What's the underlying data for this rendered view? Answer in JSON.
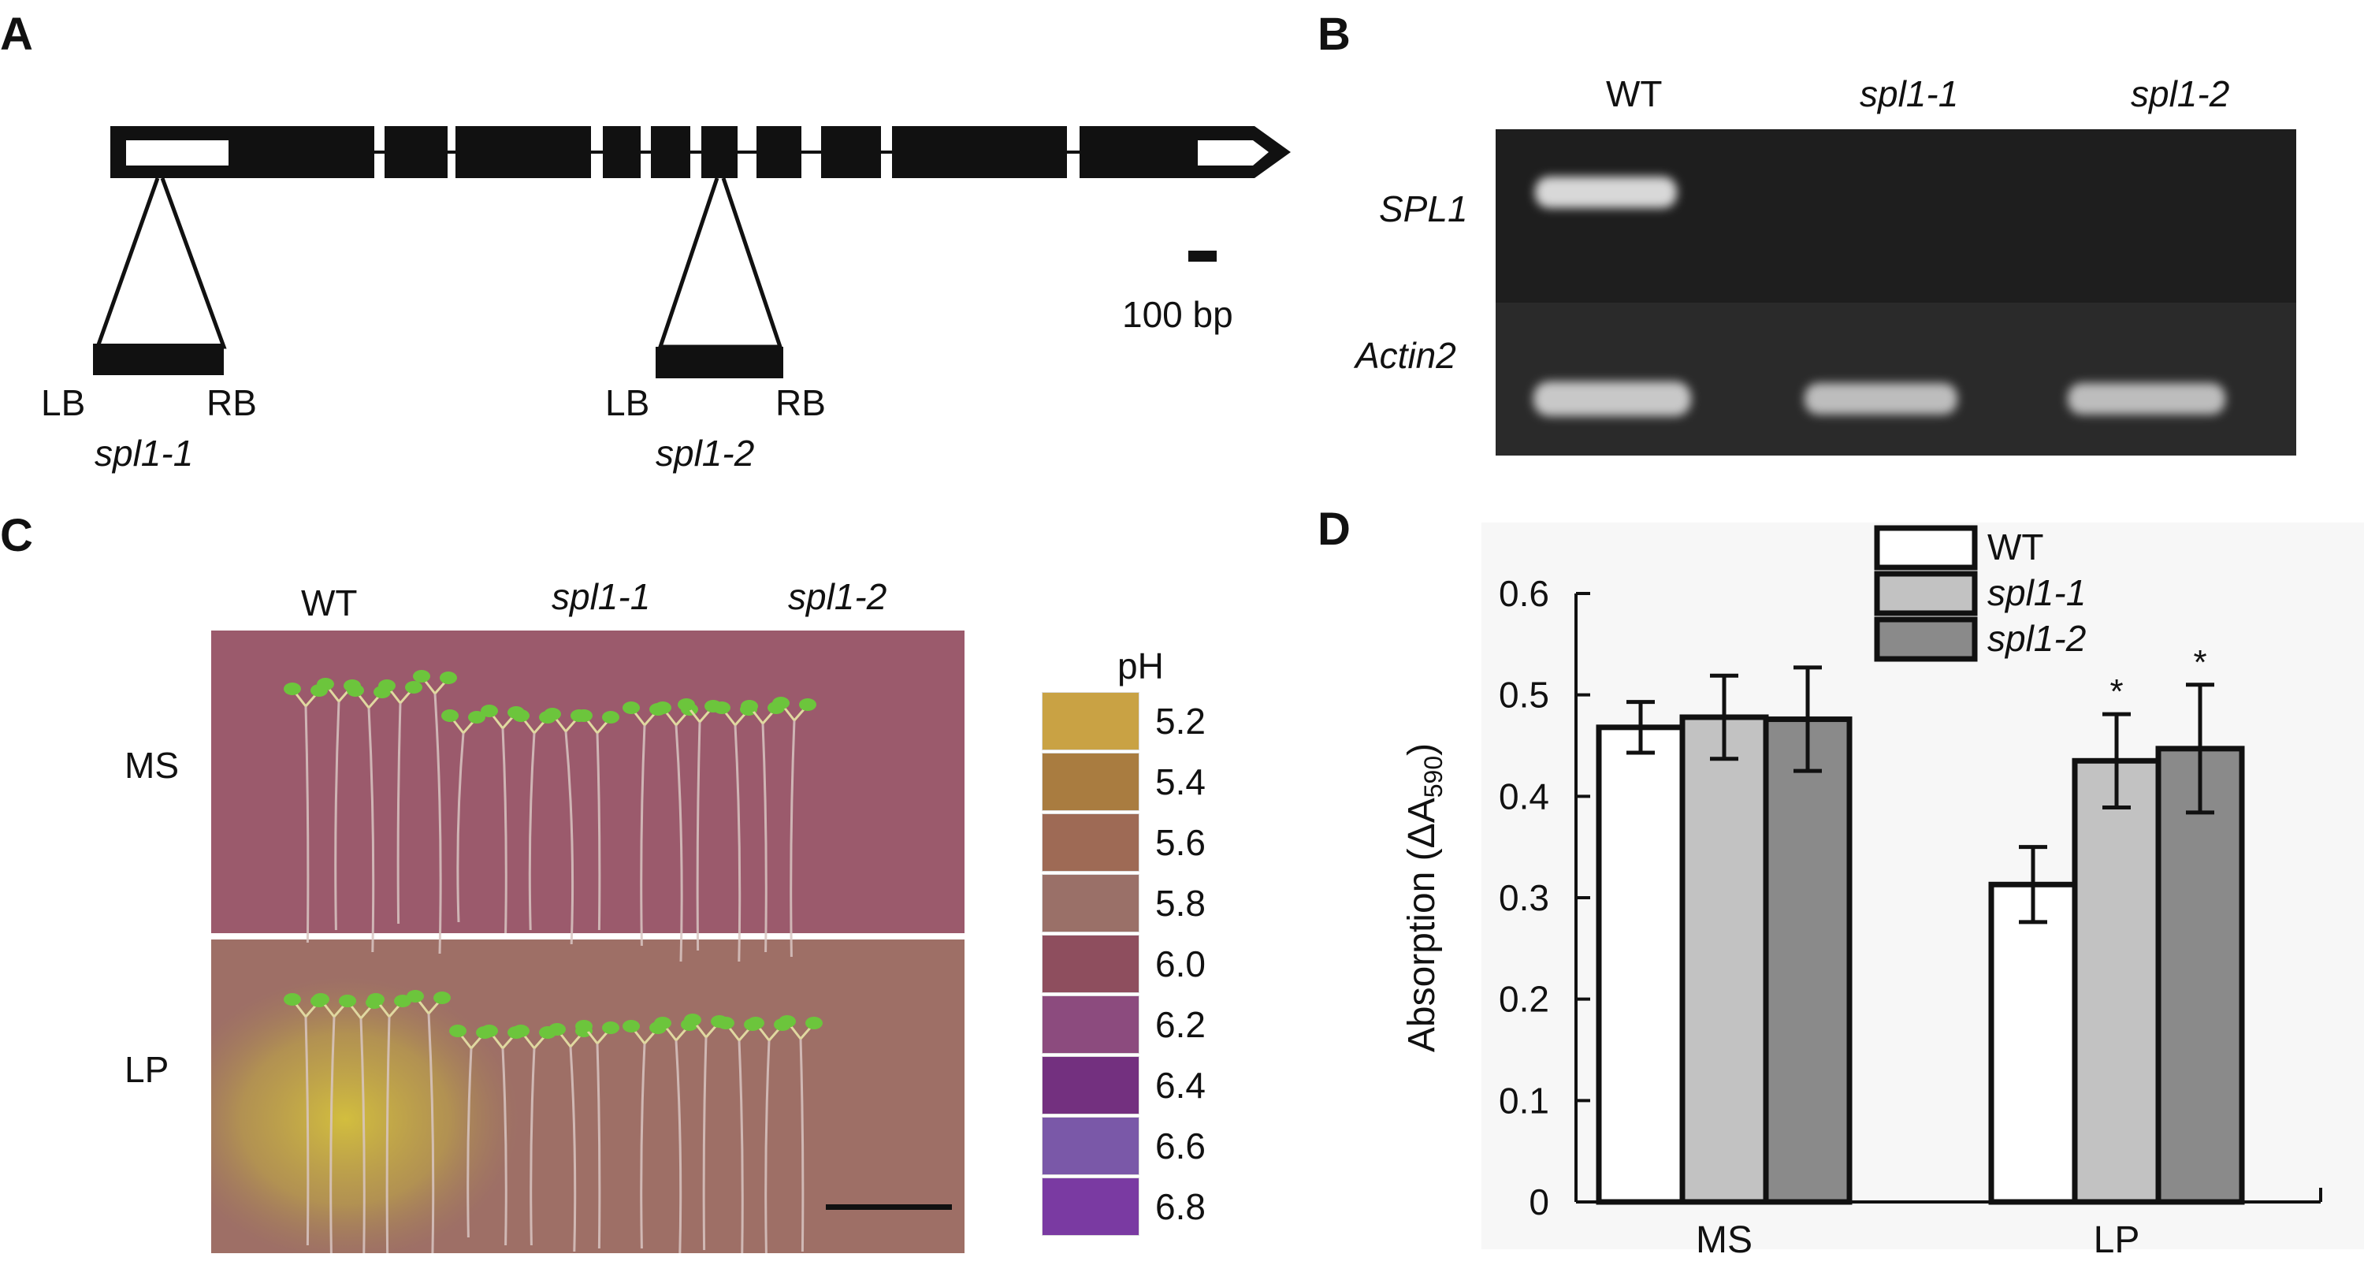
{
  "panelA": {
    "letter": "A",
    "scale_label": "100 bp",
    "insertions": [
      {
        "lb": "LB",
        "rb": "RB",
        "name": "spl1-1"
      },
      {
        "lb": "LB",
        "rb": "RB",
        "name": "spl1-2"
      }
    ]
  },
  "panelB": {
    "letter": "B",
    "lanes": [
      "WT",
      "spl1-1",
      "spl1-2"
    ],
    "bands": [
      "SPL1",
      "Actin2"
    ],
    "gel_background": "#1a1a1a",
    "band_color": "#d8d8d8"
  },
  "panelC": {
    "letter": "C",
    "columns": [
      "WT",
      "spl1-1",
      "spl1-2"
    ],
    "rows": [
      "MS",
      "LP"
    ],
    "ph_title": "pH",
    "ph_scale": [
      {
        "value": "5.2",
        "color": "#c9a244"
      },
      {
        "value": "5.4",
        "color": "#a97c40"
      },
      {
        "value": "5.6",
        "color": "#9e6a55"
      },
      {
        "value": "5.8",
        "color": "#9a7068"
      },
      {
        "value": "6.0",
        "color": "#8e4e5e"
      },
      {
        "value": "6.2",
        "color": "#8c4b7e"
      },
      {
        "value": "6.4",
        "color": "#73307f"
      },
      {
        "value": "6.6",
        "color": "#7a58a8"
      },
      {
        "value": "6.8",
        "color": "#7a3aa2"
      }
    ],
    "plate_color": "#9b5a6c",
    "yellow_zone_color": "#c7b23e",
    "seedling_green": "#6cc53c"
  },
  "panelD": {
    "letter": "D"
  },
  "chart_data": {
    "type": "bar",
    "title": "",
    "xlabel": "",
    "ylabel": "Absorption (ΔA",
    "ylabel_sub": "590",
    "ylabel_close": ")",
    "ylim": [
      0,
      0.6
    ],
    "yticks": [
      "0",
      "0.1",
      "0.2",
      "0.3",
      "0.4",
      "0.5",
      "0.6"
    ],
    "categories": [
      "MS",
      "LP"
    ],
    "legend_position": "top-right",
    "series": [
      {
        "name": "WT",
        "color": "#ffffff",
        "values": [
          0.468,
          0.313
        ],
        "errors": [
          0.025,
          0.037
        ],
        "significant": [
          false,
          false
        ]
      },
      {
        "name": "spl1-1",
        "color": "#c2c2c2",
        "values": [
          0.478,
          0.435
        ],
        "errors": [
          0.041,
          0.046
        ],
        "significant": [
          false,
          true
        ]
      },
      {
        "name": "spl1-2",
        "color": "#8a8a8a",
        "values": [
          0.476,
          0.447
        ],
        "errors": [
          0.051,
          0.063
        ],
        "significant": [
          false,
          true
        ]
      }
    ],
    "significance_mark": "*"
  }
}
